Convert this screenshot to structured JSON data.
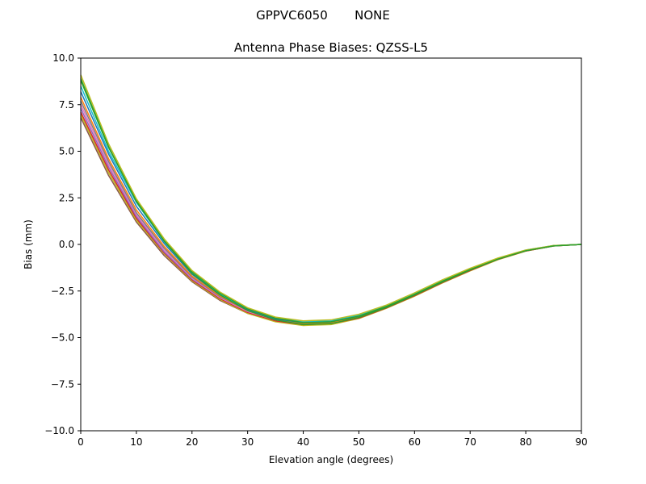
{
  "suptitle": "GPPVC6050       NONE",
  "chart_data": {
    "type": "line",
    "title": "Antenna Phase Biases: QZSS-L5",
    "xlabel": "Elevation angle (degrees)",
    "ylabel": "Bias (mm)",
    "xlim": [
      0,
      90
    ],
    "ylim": [
      -10,
      10
    ],
    "xticks": [
      0,
      10,
      20,
      30,
      40,
      50,
      60,
      70,
      80,
      90
    ],
    "yticks": [
      -10.0,
      -7.5,
      -5.0,
      -2.5,
      0.0,
      2.5,
      5.0,
      7.5,
      10.0
    ],
    "ytick_labels": [
      "−10.0",
      "−7.5",
      "−5.0",
      "−2.5",
      "0.0",
      "2.5",
      "5.0",
      "7.5",
      "10.0"
    ],
    "grid": false,
    "legend": "none",
    "x": [
      0,
      5,
      10,
      15,
      20,
      25,
      30,
      35,
      40,
      45,
      50,
      55,
      60,
      65,
      70,
      75,
      80,
      85,
      90
    ],
    "series": [
      {
        "color": "#8c564b",
        "values": [
          6.8,
          3.7,
          1.2,
          -0.6,
          -2.0,
          -3.0,
          -3.7,
          -4.1,
          -4.3,
          -4.25,
          -3.95,
          -3.4,
          -2.75,
          -2.05,
          -1.4,
          -0.8,
          -0.35,
          -0.08,
          0.0
        ]
      },
      {
        "color": "#bcbd22",
        "values": [
          6.95,
          3.85,
          1.3,
          -0.5,
          -1.95,
          -2.95,
          -3.7,
          -4.15,
          -4.35,
          -4.3,
          -3.98,
          -3.42,
          -2.78,
          -2.07,
          -1.42,
          -0.82,
          -0.36,
          -0.08,
          0.0
        ]
      },
      {
        "color": "#d62728",
        "values": [
          7.1,
          4.0,
          1.4,
          -0.45,
          -1.9,
          -2.9,
          -3.65,
          -4.1,
          -4.3,
          -4.25,
          -3.95,
          -3.4,
          -2.75,
          -2.05,
          -1.4,
          -0.8,
          -0.35,
          -0.08,
          0.0
        ]
      },
      {
        "color": "#9467bd",
        "values": [
          7.3,
          4.15,
          1.5,
          -0.4,
          -1.85,
          -2.85,
          -3.6,
          -4.05,
          -4.25,
          -4.2,
          -3.9,
          -3.35,
          -2.7,
          -2.0,
          -1.35,
          -0.78,
          -0.33,
          -0.07,
          0.0
        ]
      },
      {
        "color": "#e377c2",
        "values": [
          7.5,
          4.3,
          1.6,
          -0.3,
          -1.8,
          -2.85,
          -3.6,
          -4.05,
          -4.25,
          -4.2,
          -3.9,
          -3.35,
          -2.7,
          -2.0,
          -1.35,
          -0.78,
          -0.33,
          -0.07,
          0.0
        ]
      },
      {
        "color": "#7f7f7f",
        "values": [
          7.7,
          4.45,
          1.7,
          -0.2,
          -1.75,
          -2.8,
          -3.55,
          -4.0,
          -4.2,
          -4.15,
          -3.85,
          -3.32,
          -2.68,
          -1.98,
          -1.33,
          -0.76,
          -0.32,
          -0.07,
          0.0
        ]
      },
      {
        "color": "#ff7f0e",
        "values": [
          7.9,
          4.6,
          1.85,
          -0.1,
          -1.7,
          -2.75,
          -3.55,
          -4.05,
          -4.25,
          -4.2,
          -3.9,
          -3.35,
          -2.7,
          -2.0,
          -1.35,
          -0.78,
          -0.33,
          -0.07,
          0.0
        ]
      },
      {
        "color": "#1f77b4",
        "values": [
          8.2,
          4.85,
          2.05,
          0.05,
          -1.6,
          -2.7,
          -3.5,
          -4.0,
          -4.2,
          -4.15,
          -3.85,
          -3.32,
          -2.68,
          -1.98,
          -1.33,
          -0.76,
          -0.32,
          -0.07,
          0.0
        ]
      },
      {
        "color": "#17becf",
        "values": [
          8.5,
          5.0,
          2.25,
          0.15,
          -1.5,
          -2.65,
          -3.45,
          -3.95,
          -4.15,
          -4.1,
          -3.8,
          -3.3,
          -2.65,
          -1.95,
          -1.3,
          -0.75,
          -0.3,
          -0.06,
          0.0
        ]
      },
      {
        "color": "#2ca02c",
        "values": [
          8.8,
          5.2,
          2.35,
          0.2,
          -1.45,
          -2.6,
          -3.45,
          -3.95,
          -4.2,
          -4.15,
          -3.85,
          -3.32,
          -2.68,
          -1.98,
          -1.33,
          -0.76,
          -0.32,
          -0.07,
          0.0
        ]
      },
      {
        "color": "#bcbd22",
        "values": [
          9.1,
          5.4,
          2.45,
          0.3,
          -1.4,
          -2.55,
          -3.4,
          -3.9,
          -4.1,
          -4.05,
          -3.75,
          -3.25,
          -2.6,
          -1.9,
          -1.28,
          -0.73,
          -0.3,
          -0.06,
          0.0
        ]
      },
      {
        "color": "#2ca02c",
        "values": [
          8.9,
          5.25,
          2.3,
          0.18,
          -1.55,
          -2.7,
          -3.55,
          -4.05,
          -4.3,
          -4.25,
          -3.92,
          -3.38,
          -2.72,
          -2.02,
          -1.37,
          -0.79,
          -0.34,
          -0.08,
          0.0
        ]
      }
    ]
  }
}
